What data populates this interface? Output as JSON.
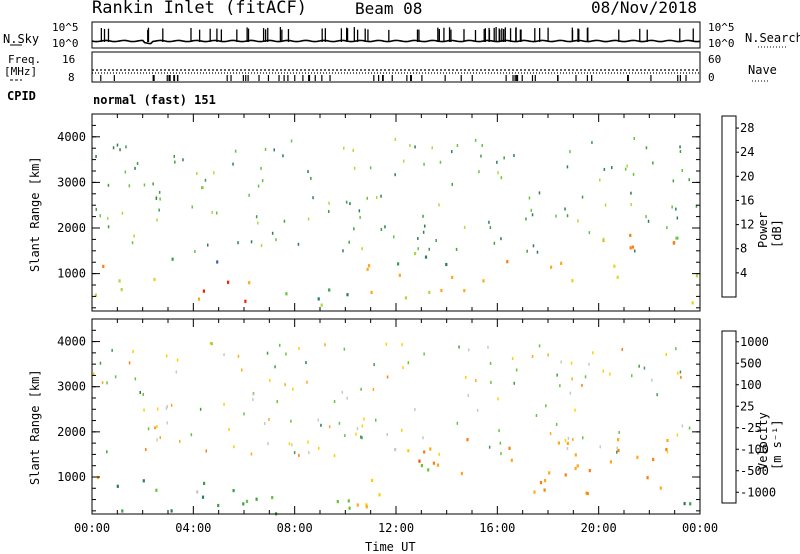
{
  "header": {
    "station": "Rankin Inlet (fitACF)",
    "beam": "Beam 08",
    "date": "08/Nov/2018"
  },
  "panels": {
    "nsky_label": "N.Sky",
    "nsky_top_tick": "10^5",
    "nsky_bottom_tick": "10^0",
    "nsearch_label": "N.Search",
    "nsearch_top_tick": "10^5",
    "nsearch_bottom_tick": "10^0",
    "freq_label_line1": "Freq.",
    "freq_label_line2": "[MHz]",
    "freq_top_tick": "16",
    "freq_bottom_tick": "8",
    "nave_label": "Nave",
    "nave_top_tick": "60",
    "nave_bottom_tick": "0",
    "cpid_label": "CPID",
    "cpid_value": "normal (fast) 151"
  },
  "chart_data": [
    {
      "type": "heatmap",
      "name": "power",
      "xlabel": "Time UT",
      "ylabel": "Slant Range [km]",
      "x_ticks": [
        "00:00",
        "04:00",
        "08:00",
        "12:00",
        "16:00",
        "20:00",
        "00:00"
      ],
      "y_ticks": [
        "1000",
        "2000",
        "3000",
        "4000"
      ],
      "x_range_hours": [
        0,
        24
      ],
      "y_range_km": [
        180,
        4500
      ],
      "colorbar": {
        "label": "Power [dB]",
        "ticks": [
          "4",
          "8",
          "12",
          "16",
          "20",
          "24",
          "28"
        ],
        "range": [
          0,
          30
        ],
        "colors": [
          "#1010ff",
          "#2040c0",
          "#3c64a8",
          "#2e7d54",
          "#3f9f48",
          "#64c43c",
          "#a8dc3c",
          "#e8d020",
          "#ffa818",
          "#ff7c10",
          "#ff4c08",
          "#ff1800"
        ]
      },
      "clusters": [
        {
          "t": [
            0.0,
            0.7
          ],
          "r": [
            900,
            1750
          ],
          "p": 24
        },
        {
          "t": [
            0.0,
            2.6
          ],
          "r": [
            300,
            950
          ],
          "p": 18
        },
        {
          "t": [
            2.6,
            6.4
          ],
          "r": [
            250,
            850
          ],
          "p": 26
        },
        {
          "t": [
            6.4,
            10.4
          ],
          "r": [
            200,
            700
          ],
          "p": 12
        },
        {
          "t": [
            10.4,
            12.6
          ],
          "r": [
            300,
            1300
          ],
          "p": 19
        },
        {
          "t": [
            11.8,
            14.6
          ],
          "r": [
            1100,
            1700
          ],
          "p": 13
        },
        {
          "t": [
            12.6,
            16.2
          ],
          "r": [
            600,
            1150
          ],
          "p": 20
        },
        {
          "t": [
            16.2,
            19.6
          ],
          "r": [
            750,
            1300
          ],
          "p": 22
        },
        {
          "t": [
            19.6,
            23.0
          ],
          "r": [
            950,
            1900
          ],
          "p": 23
        },
        {
          "t": [
            23.0,
            24.0
          ],
          "r": [
            300,
            1000
          ],
          "p": 15
        },
        {
          "t": [
            2.0,
            5.2
          ],
          "r": [
            1150,
            1450
          ],
          "p": 11
        }
      ]
    },
    {
      "type": "heatmap",
      "name": "velocity",
      "xlabel": "Time UT",
      "ylabel": "Slant Range [km]",
      "x_ticks": [
        "00:00",
        "04:00",
        "08:00",
        "12:00",
        "16:00",
        "20:00",
        "00:00"
      ],
      "y_ticks": [
        "1000",
        "2000",
        "3000",
        "4000"
      ],
      "x_range_hours": [
        0,
        24
      ],
      "y_range_km": [
        180,
        4500
      ],
      "colorbar": {
        "label": "Velocity [m s⁻¹]",
        "ticks": [
          "1000",
          "500",
          "100",
          "25",
          "-25",
          "-100",
          "-500",
          "-1000"
        ],
        "colors": [
          "#2040d0",
          "#3060a0",
          "#2e7d54",
          "#3f9f48",
          "#64c43c",
          "#c8c8c8",
          "#ffd000",
          "#ffa818",
          "#ff7c10",
          "#ff4c08",
          "#ff1800"
        ]
      },
      "clusters": [
        {
          "t": [
            0.0,
            0.7
          ],
          "r": [
            900,
            1750
          ],
          "v": -200
        },
        {
          "t": [
            0.0,
            6.6
          ],
          "r": [
            250,
            1000
          ],
          "v": 300
        },
        {
          "t": [
            2.6,
            4.8
          ],
          "r": [
            700,
            950
          ],
          "v": 0
        },
        {
          "t": [
            6.6,
            10.4
          ],
          "r": [
            200,
            700
          ],
          "v": 150
        },
        {
          "t": [
            10.4,
            12.6
          ],
          "r": [
            300,
            1300
          ],
          "v": -150
        },
        {
          "t": [
            11.8,
            14.6
          ],
          "r": [
            1150,
            1700
          ],
          "v": 0
        },
        {
          "t": [
            12.6,
            23.0
          ],
          "r": [
            600,
            1900
          ],
          "v": -350
        },
        {
          "t": [
            23.0,
            24.0
          ],
          "r": [
            300,
            1000
          ],
          "v": 250
        }
      ]
    }
  ]
}
